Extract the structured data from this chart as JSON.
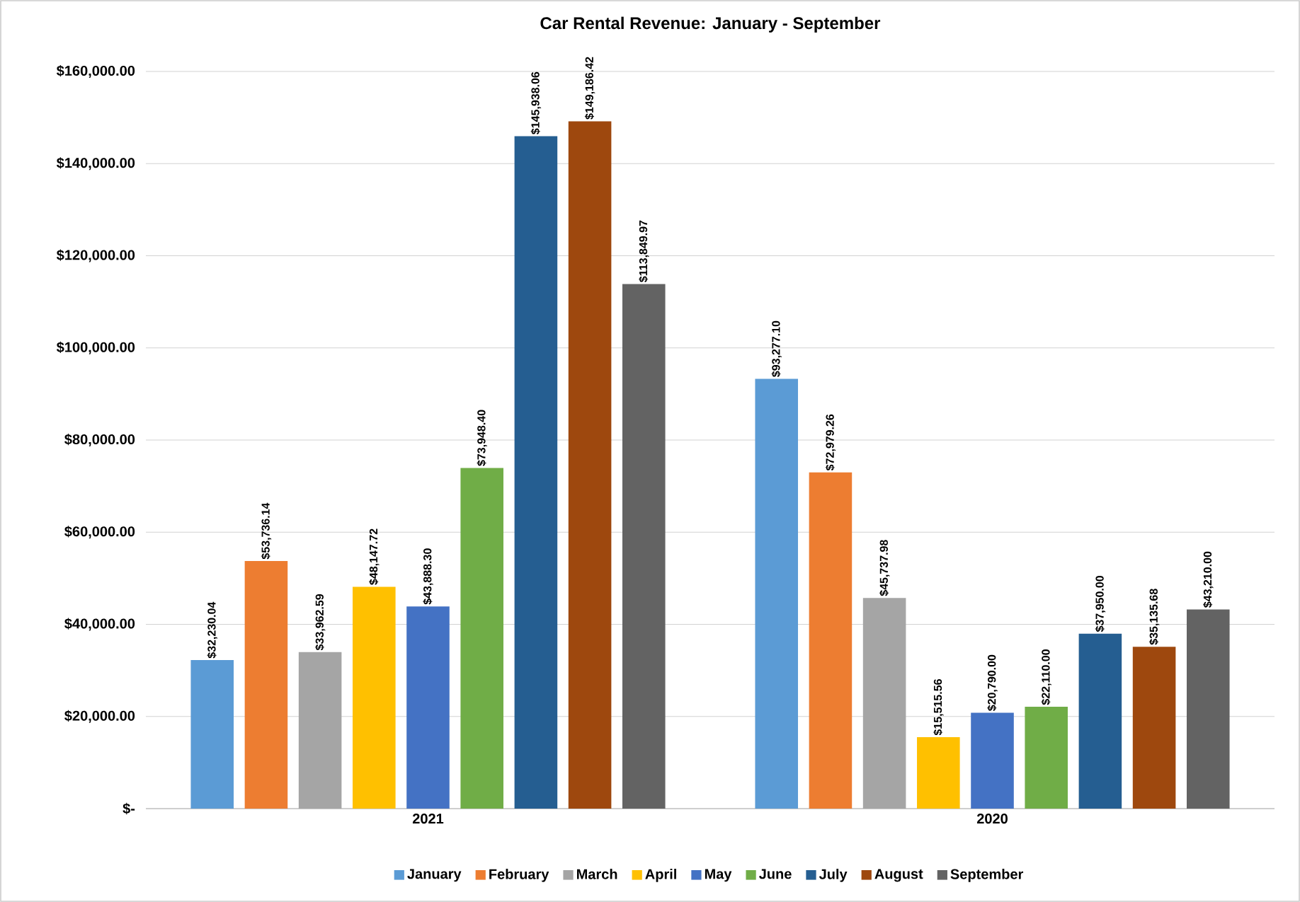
{
  "chart_data": {
    "type": "bar",
    "title": "Car Rental Revenue: January - September",
    "categories": [
      "2021",
      "2020"
    ],
    "ylim": [
      0,
      160000
    ],
    "yticks": [
      {
        "value": 0,
        "label": "$-"
      },
      {
        "value": 20000,
        "label": "$20,000.00"
      },
      {
        "value": 40000,
        "label": "$40,000.00"
      },
      {
        "value": 60000,
        "label": "$60,000.00"
      },
      {
        "value": 80000,
        "label": "$80,000.00"
      },
      {
        "value": 100000,
        "label": "$100,000.00"
      },
      {
        "value": 120000,
        "label": "$120,000.00"
      },
      {
        "value": 140000,
        "label": "$140,000.00"
      },
      {
        "value": 160000,
        "label": "$160,000.00"
      }
    ],
    "grid": "y",
    "legend": "bottom",
    "series": [
      {
        "name": "January",
        "color": "#5b9bd5",
        "values": [
          32230.04,
          93277.1
        ],
        "value_labels": [
          "$32,230.04",
          "$93,277.10"
        ]
      },
      {
        "name": "February",
        "color": "#ed7d31",
        "values": [
          53736.14,
          72979.26
        ],
        "value_labels": [
          "$53,736.14",
          "$72,979.26"
        ]
      },
      {
        "name": "March",
        "color": "#a5a5a5",
        "values": [
          33962.59,
          45737.98
        ],
        "value_labels": [
          "$33,962.59",
          "$45,737.98"
        ]
      },
      {
        "name": "April",
        "color": "#ffc000",
        "values": [
          48147.72,
          15515.56
        ],
        "value_labels": [
          "$48,147.72",
          "$15,515.56"
        ]
      },
      {
        "name": "May",
        "color": "#4472c4",
        "values": [
          43888.3,
          20790.0
        ],
        "value_labels": [
          "$43,888.30",
          "$20,790.00"
        ]
      },
      {
        "name": "June",
        "color": "#70ad47",
        "values": [
          73948.4,
          22110.0
        ],
        "value_labels": [
          "$73,948.40",
          "$22,110.00"
        ]
      },
      {
        "name": "July",
        "color": "#255e91",
        "values": [
          145938.06,
          37950.0
        ],
        "value_labels": [
          "$145,938.06",
          "$37,950.00"
        ]
      },
      {
        "name": "August",
        "color": "#9e480e",
        "values": [
          149186.42,
          35135.68
        ],
        "value_labels": [
          "$149,186.42",
          "$35,135.68"
        ]
      },
      {
        "name": "September",
        "color": "#636363",
        "values": [
          113849.97,
          43210.0
        ],
        "value_labels": [
          "$113,849.97",
          "$43,210.00"
        ]
      }
    ]
  }
}
